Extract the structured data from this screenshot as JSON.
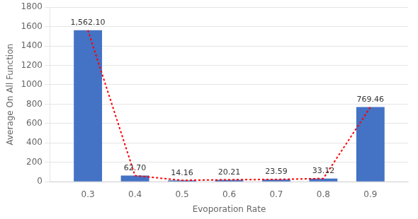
{
  "chart_data": {
    "type": "bar",
    "x": [
      0.3,
      0.4,
      0.5,
      0.6,
      0.7,
      0.8,
      0.9
    ],
    "series": [
      {
        "type": "bar",
        "color": "#4472c4",
        "values": [
          1562.1,
          62.7,
          14.16,
          20.21,
          23.59,
          33.12,
          769.46
        ],
        "value_labels": [
          "1,562.10",
          "62.70",
          "14.16",
          "20.21",
          "23.59",
          "33.12",
          "769.46"
        ]
      },
      {
        "type": "line",
        "color": "#ff0000",
        "line_style": "dotted",
        "values": [
          1562.1,
          62.7,
          14.16,
          20.21,
          23.59,
          33.12,
          769.46
        ]
      }
    ],
    "xlabel": "Evoporation Rate",
    "ylabel": "Average On All Function",
    "xlim": [
      0.22,
      0.98
    ],
    "xticks": [
      0.3,
      0.4,
      0.5,
      0.6,
      0.7,
      0.8,
      0.9
    ],
    "ylim": [
      0,
      1800
    ],
    "yticks": [
      0,
      200,
      400,
      600,
      800,
      1000,
      1200,
      1400,
      1600,
      1800
    ],
    "grid": "y",
    "data_labels": true
  }
}
